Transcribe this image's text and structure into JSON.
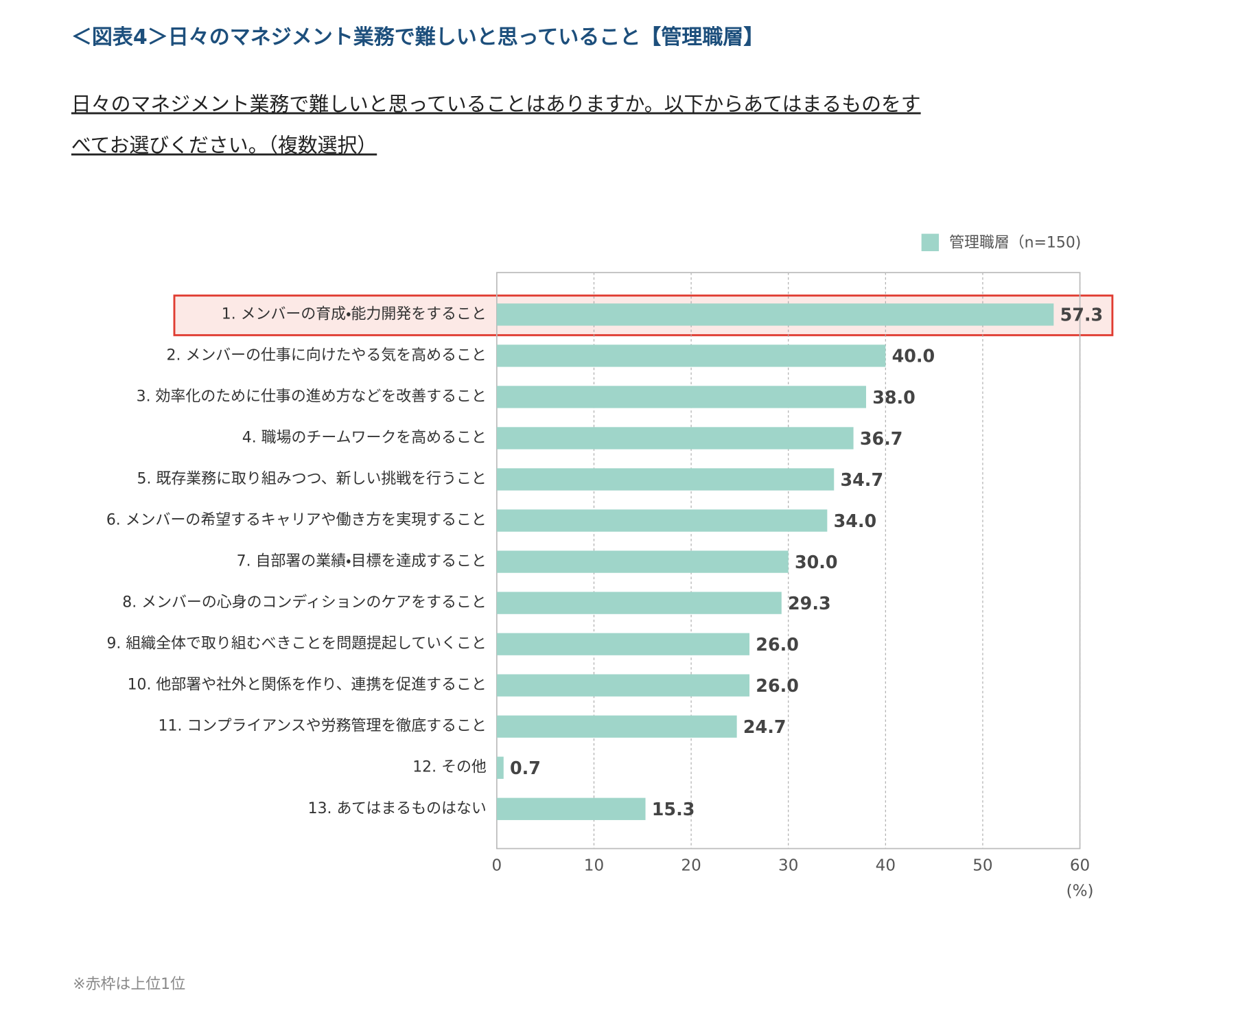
{
  "chart_data": {
    "type": "bar",
    "orientation": "horizontal",
    "title": "＜図表4＞日々のマネジメント業務で難しいと思っていること【管理職層】",
    "subtitle": [
      "日々のマネジメント業務で難しいと思っていることはありますか。以下からあてはまるものをす",
      "べてお選びください。（複数選択）"
    ],
    "x_label": "(%)",
    "annotation": "※赤枠は上位1位",
    "categories": [
      "1. メンバーの育成・能力開発をすること",
      "2. メンバーの仕事に向けたやる気を高めること",
      "3. 効率化のために仕事の進め方などを改善すること",
      "4. 職場のチームワークを高めること",
      "5. 既存業務に取り組みつつ、新しい挑戦を行うこと",
      "6. メンバーの希望するキャリアや働き方を実現すること",
      "7. 自部署の業績・目標を達成すること",
      "8. メンバーの心身のコンディションのケアをすること",
      "9. 組織全体で取り組むべきことを問題提起していくこと",
      "10. 他部署や社外と関係を作り、連携を促進すること",
      "11. コンプライアンスや労務管理を徹底すること",
      "12. その他",
      "13. あてはまるものはない"
    ],
    "series": [
      {
        "name": "管理職層（n=150)",
        "color": "#9fd5c9",
        "values": [
          57.3,
          40.0,
          38.0,
          36.7,
          34.7,
          34.0,
          30.0,
          29.3,
          26.0,
          26.0,
          24.7,
          0.7,
          15.3
        ],
        "value_labels": [
          "57.3",
          "40.0",
          "38.0",
          "36.7",
          "34.7",
          "34.0",
          "30.0",
          "29.3",
          "26.0",
          "26.0",
          "24.7",
          "0.7",
          "15.3"
        ]
      }
    ],
    "xlim": [
      0,
      60
    ],
    "xticks": [
      0,
      10,
      20,
      30,
      40,
      50,
      60
    ],
    "grid": true,
    "legend": "top-right",
    "highlight": {
      "index": 0,
      "color": "#e03c31"
    }
  }
}
